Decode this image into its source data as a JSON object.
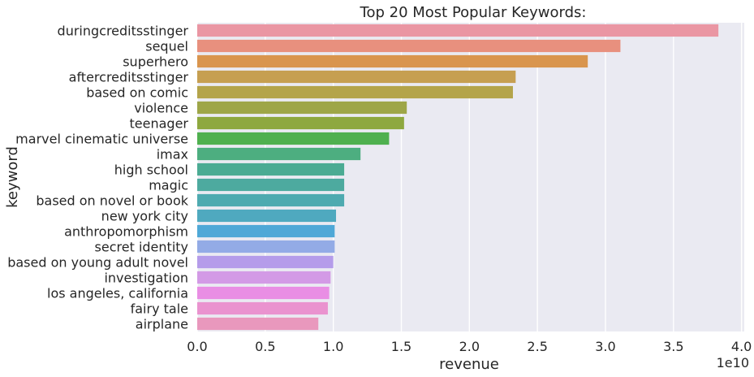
{
  "chart_data": {
    "type": "bar",
    "orientation": "horizontal",
    "title": "Top 20 Most Popular Keywords:",
    "xlabel": "revenue",
    "ylabel": "keyword",
    "x_scale_label": "1e10",
    "xlim": [
      0,
      4.02
    ],
    "x_ticks": [
      "0.0",
      "0.5",
      "1.0",
      "1.5",
      "2.0",
      "2.5",
      "3.0",
      "3.5",
      "4.0"
    ],
    "grid": true,
    "categories": [
      "duringcreditsstinger",
      "sequel",
      "superhero",
      "aftercreditsstinger",
      "based on comic",
      "violence",
      "teenager",
      "marvel cinematic universe",
      "imax",
      "high school",
      "magic",
      "based on novel or book",
      "new york city",
      "anthropomorphism",
      "secret identity",
      "based on young adult novel",
      "investigation",
      "los angeles, california",
      "fairy tale",
      "airplane"
    ],
    "values": [
      3.83,
      3.11,
      2.87,
      2.34,
      2.32,
      1.54,
      1.52,
      1.41,
      1.2,
      1.08,
      1.08,
      1.08,
      1.02,
      1.01,
      1.01,
      1.0,
      0.98,
      0.97,
      0.96,
      0.89
    ],
    "colors": [
      "#ea96a3",
      "#e8907e",
      "#d9954e",
      "#c69f51",
      "#b4a44a",
      "#9ea648",
      "#8ea83f",
      "#4fb04f",
      "#4dae80",
      "#4bab93",
      "#4daa9f",
      "#4eaab0",
      "#4fa9bf",
      "#4fa8d7",
      "#93abe6",
      "#b59cea",
      "#d39ae6",
      "#e98ee4",
      "#ea93cf",
      "#e998bd"
    ]
  }
}
